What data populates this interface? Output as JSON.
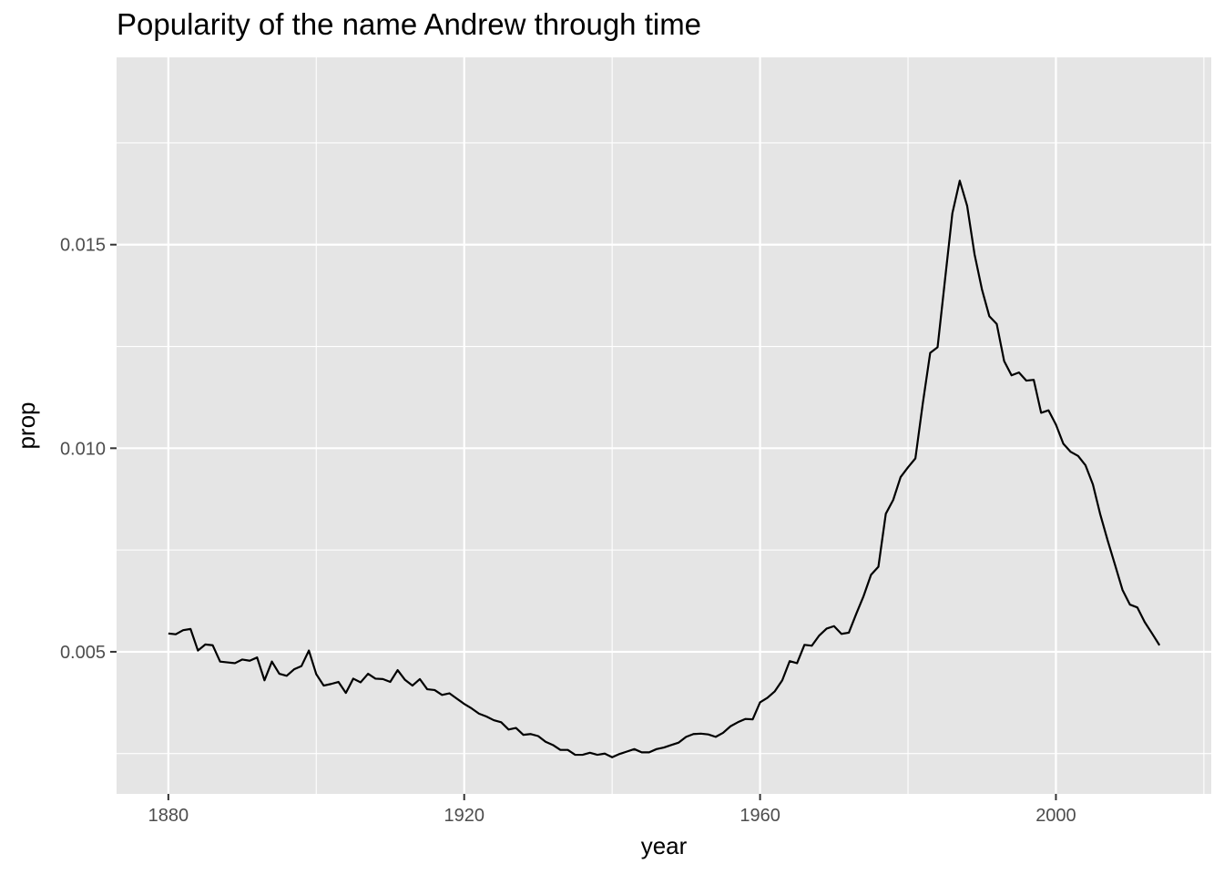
{
  "chart_data": {
    "type": "line",
    "title": "Popularity of the name Andrew through time",
    "xlabel": "year",
    "ylabel": "prop",
    "xlim": [
      1873,
      2021
    ],
    "ylim": [
      0.00151,
      0.0196
    ],
    "x_ticks": [
      1880,
      1920,
      1960,
      2000
    ],
    "x_tick_labels": [
      "1880",
      "1920",
      "1960",
      "2000"
    ],
    "x_minor_ticks": [
      1900,
      1940,
      1980,
      2020
    ],
    "y_ticks": [
      0.005,
      0.01,
      0.015
    ],
    "y_tick_labels": [
      "0.005",
      "0.010",
      "0.015"
    ],
    "y_minor_ticks": [
      0.0025,
      0.0075,
      0.0125,
      0.0175
    ],
    "grid": true,
    "legend": "none",
    "colors": {
      "panel": "#e5e5e5",
      "grid": "#ffffff",
      "line": "#000000",
      "tick_text": "#4d4d4d",
      "tick_mark": "#333333"
    },
    "series": [
      {
        "x": [
          1880,
          1881,
          1882,
          1883,
          1884,
          1885,
          1886,
          1887,
          1888,
          1889,
          1890,
          1891,
          1892,
          1893,
          1894,
          1895,
          1896,
          1897,
          1898,
          1899,
          1900,
          1901,
          1902,
          1903,
          1904,
          1905,
          1906,
          1907,
          1908,
          1909,
          1910,
          1911,
          1912,
          1913,
          1914,
          1915,
          1916,
          1917,
          1918,
          1919,
          1920,
          1921,
          1922,
          1923,
          1924,
          1925,
          1926,
          1927,
          1928,
          1929,
          1930,
          1931,
          1932,
          1933,
          1934,
          1935,
          1936,
          1937,
          1938,
          1939,
          1940,
          1941,
          1942,
          1943,
          1944,
          1945,
          1946,
          1947,
          1948,
          1949,
          1950,
          1951,
          1952,
          1953,
          1954,
          1955,
          1956,
          1957,
          1958,
          1959,
          1960,
          1961,
          1962,
          1963,
          1964,
          1965,
          1966,
          1967,
          1968,
          1969,
          1970,
          1971,
          1972,
          1973,
          1974,
          1975,
          1976,
          1977,
          1978,
          1979,
          1980,
          1981,
          1982,
          1983,
          1984,
          1985,
          1986,
          1987,
          1988,
          1989,
          1990,
          1991,
          1992,
          1993,
          1994,
          1995,
          1996,
          1997,
          1998,
          1999,
          2000,
          2001,
          2002,
          2003,
          2004,
          2005,
          2006,
          2007,
          2008,
          2009,
          2010,
          2011,
          2012,
          2013,
          2014
        ],
        "values": [
          0.00545,
          0.00543,
          0.00553,
          0.00556,
          0.00503,
          0.00518,
          0.00516,
          0.00476,
          0.00474,
          0.00472,
          0.00481,
          0.00478,
          0.00486,
          0.0043,
          0.00476,
          0.00446,
          0.00441,
          0.00457,
          0.00465,
          0.00503,
          0.00445,
          0.00417,
          0.00421,
          0.00426,
          0.00399,
          0.00434,
          0.00425,
          0.00446,
          0.00434,
          0.00433,
          0.00426,
          0.00455,
          0.00431,
          0.00417,
          0.00433,
          0.00408,
          0.00406,
          0.00394,
          0.00398,
          0.00385,
          0.00372,
          0.00361,
          0.00348,
          0.00341,
          0.00332,
          0.00327,
          0.00309,
          0.00313,
          0.00296,
          0.00298,
          0.00293,
          0.00279,
          0.00271,
          0.00259,
          0.00259,
          0.00247,
          0.00247,
          0.00252,
          0.00247,
          0.0025,
          0.00241,
          0.00249,
          0.00255,
          0.00261,
          0.00253,
          0.00253,
          0.00261,
          0.00265,
          0.00271,
          0.00277,
          0.00291,
          0.00298,
          0.00299,
          0.00297,
          0.00291,
          0.00301,
          0.00317,
          0.00327,
          0.00335,
          0.00334,
          0.00376,
          0.00387,
          0.00403,
          0.0043,
          0.00477,
          0.00472,
          0.00517,
          0.00515,
          0.0054,
          0.00557,
          0.00563,
          0.00544,
          0.00547,
          0.00593,
          0.00637,
          0.00689,
          0.00709,
          0.00839,
          0.00873,
          0.00929,
          0.00953,
          0.00975,
          0.0111,
          0.01234,
          0.01248,
          0.01413,
          0.01577,
          0.01657,
          0.01595,
          0.01476,
          0.0139,
          0.01324,
          0.01305,
          0.01214,
          0.01179,
          0.01186,
          0.01166,
          0.01168,
          0.01087,
          0.01093,
          0.01058,
          0.01011,
          0.00991,
          0.00981,
          0.00958,
          0.00911,
          0.00837,
          0.00773,
          0.00713,
          0.00652,
          0.00616,
          0.00609,
          0.00573,
          0.00545,
          0.00516
        ]
      }
    ]
  }
}
